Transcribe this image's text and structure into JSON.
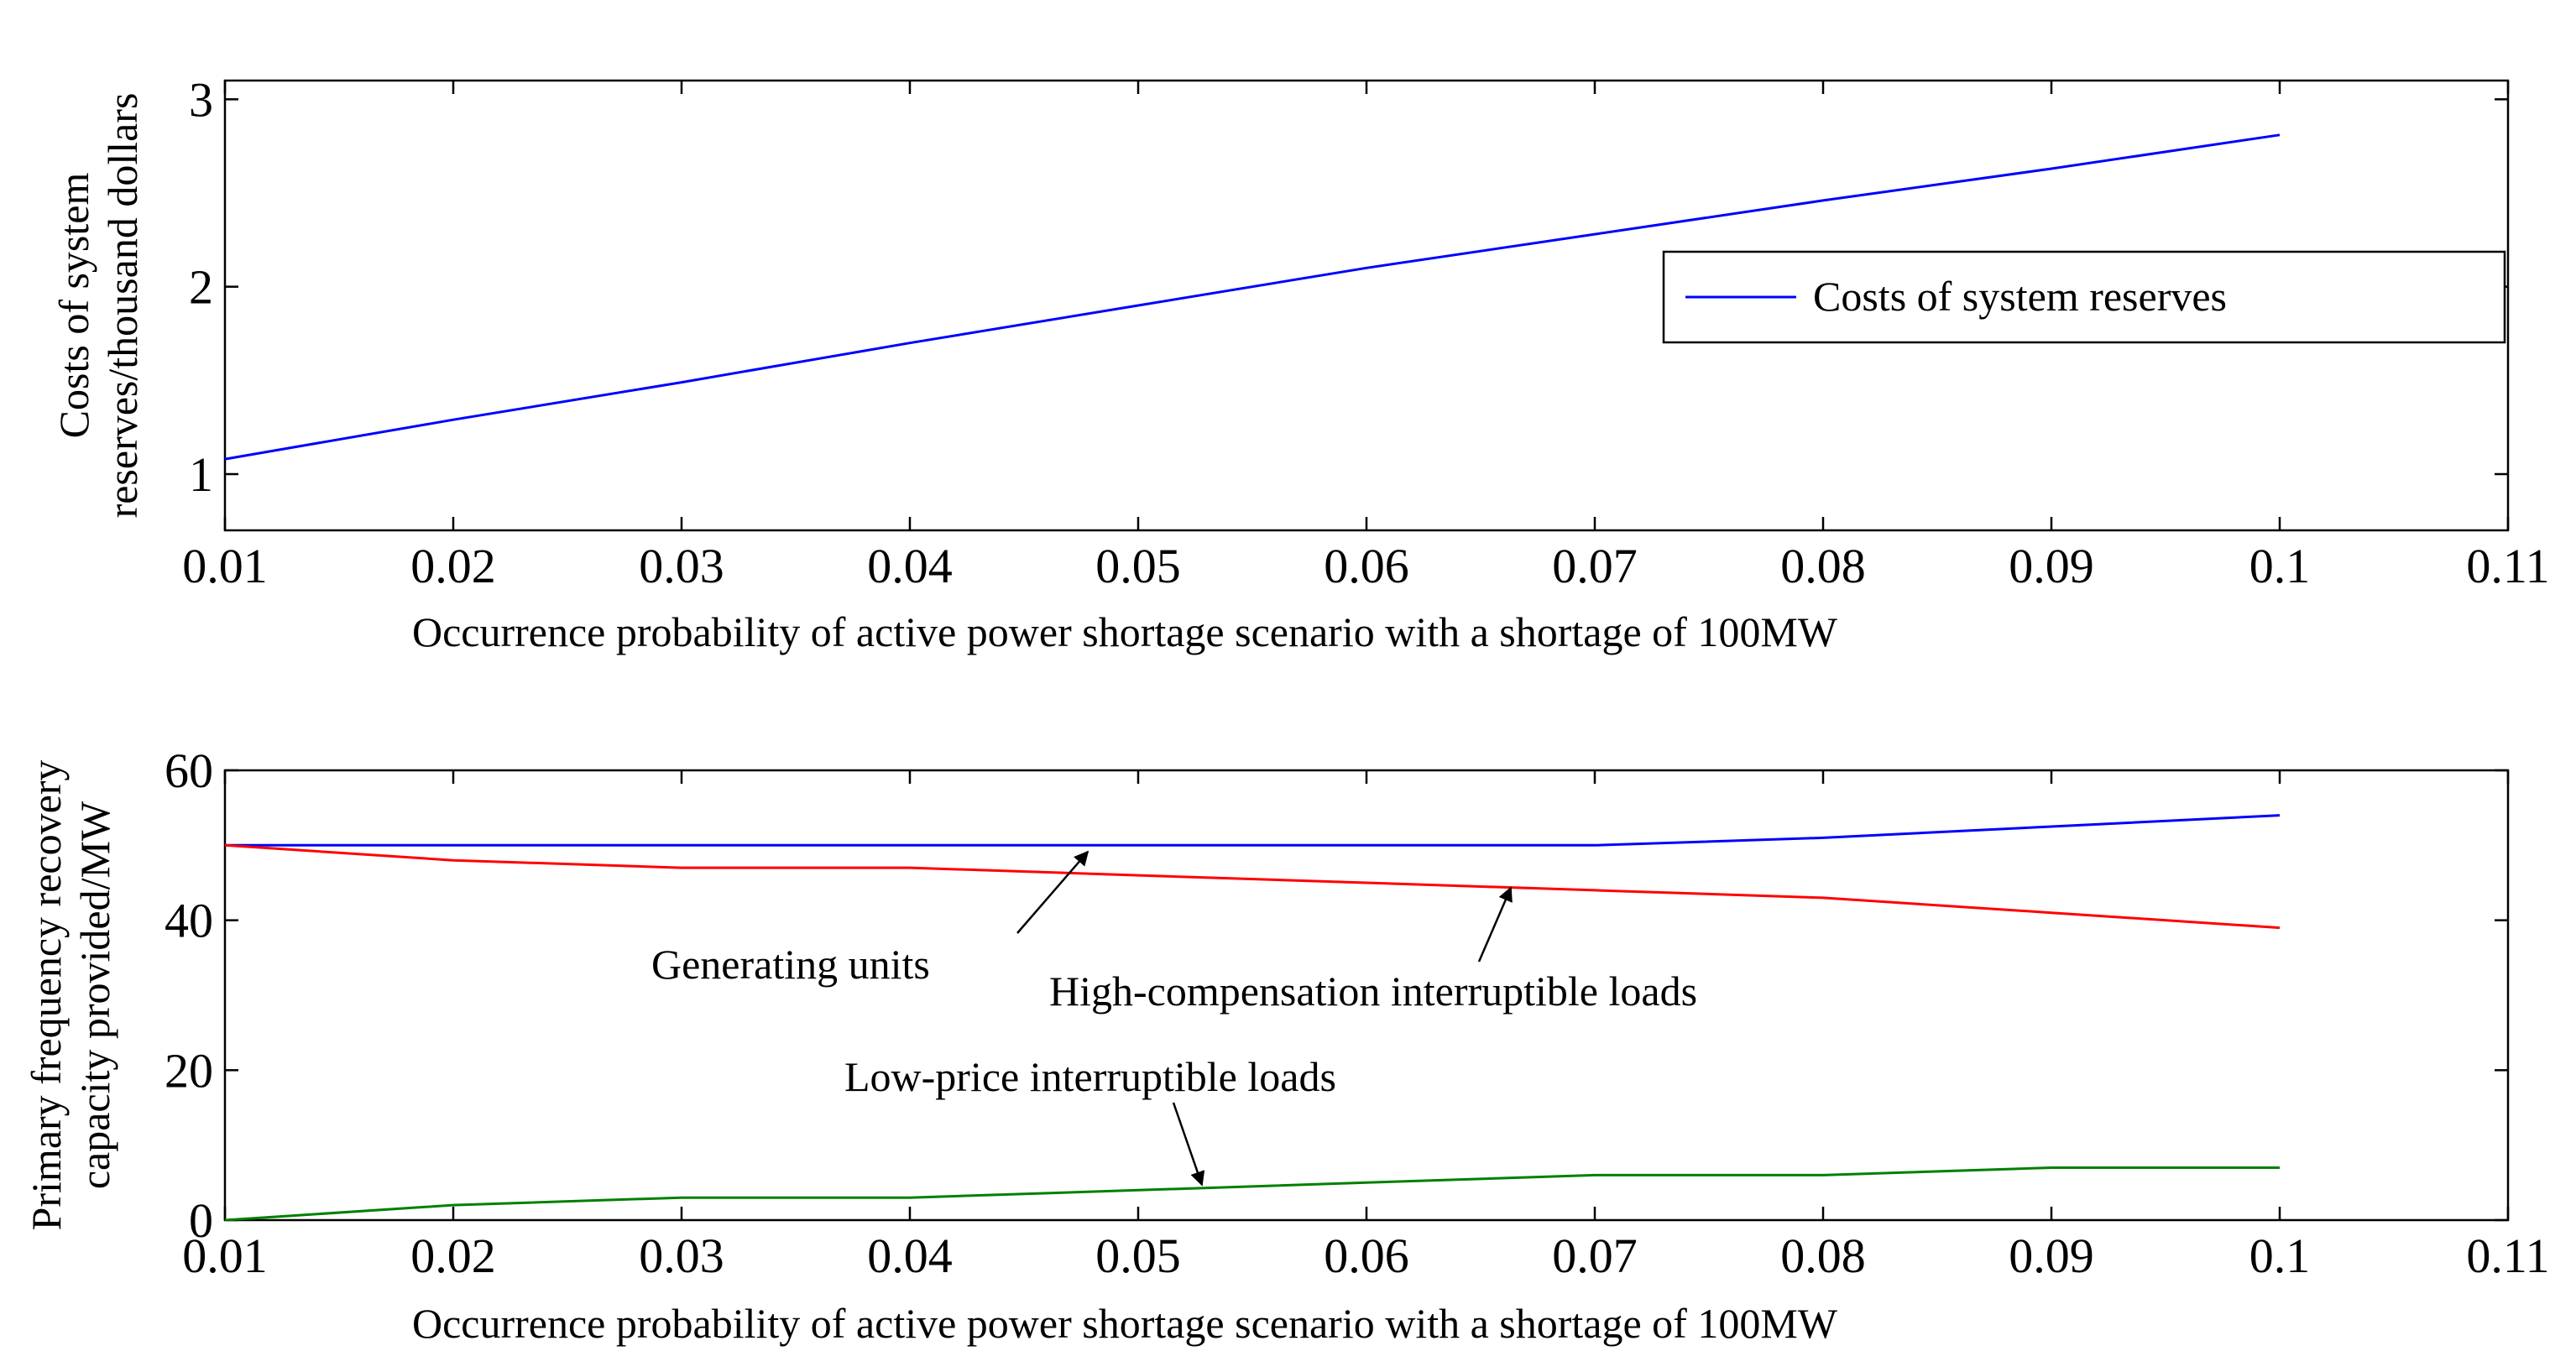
{
  "chart_data": [
    {
      "type": "line",
      "title": "",
      "xlabel": "Occurrence probability of active power shortage scenario with a shortage of 100MW",
      "ylabel_lines": [
        "Costs of system",
        "reserves/thousand dollars"
      ],
      "xlim": [
        0.01,
        0.11
      ],
      "ylim": [
        0.7,
        3.1
      ],
      "xticks": [
        "0.01",
        "0.02",
        "0.03",
        "0.04",
        "0.05",
        "0.06",
        "0.07",
        "0.08",
        "0.09",
        "0.1",
        "0.11"
      ],
      "yticks": [
        "1",
        "2",
        "3"
      ],
      "grid": false,
      "legend_position": "right",
      "series": [
        {
          "name": "Costs of system reserves",
          "color": "#0000ff",
          "x": [
            0.01,
            0.02,
            0.03,
            0.04,
            0.05,
            0.06,
            0.07,
            0.08,
            0.09,
            0.1
          ],
          "y": [
            1.08,
            1.29,
            1.49,
            1.7,
            1.9,
            2.1,
            2.28,
            2.46,
            2.63,
            2.81
          ]
        }
      ]
    },
    {
      "type": "line",
      "title": "",
      "xlabel": "Occurrence probability of active power shortage scenario with a shortage of 100MW",
      "ylabel_lines": [
        "Primary frequency recovery",
        "capacity provided/MW"
      ],
      "xlim": [
        0.01,
        0.11
      ],
      "ylim": [
        0,
        60
      ],
      "xticks": [
        "0.01",
        "0.02",
        "0.03",
        "0.04",
        "0.05",
        "0.06",
        "0.07",
        "0.08",
        "0.09",
        "0.1",
        "0.11"
      ],
      "yticks": [
        "0",
        "20",
        "40",
        "60"
      ],
      "grid": false,
      "series": [
        {
          "color": "#0000ff",
          "x": [
            0.01,
            0.02,
            0.03,
            0.04,
            0.05,
            0.06,
            0.07,
            0.08,
            0.09,
            0.1
          ],
          "y": [
            50,
            50,
            50,
            50,
            50,
            50,
            50,
            51,
            52.5,
            54
          ]
        },
        {
          "color": "#ff0000",
          "x": [
            0.01,
            0.02,
            0.03,
            0.04,
            0.05,
            0.06,
            0.07,
            0.08,
            0.09,
            0.1
          ],
          "y": [
            50,
            48,
            47,
            47,
            46,
            45,
            44,
            43,
            41,
            39
          ]
        },
        {
          "color": "#008000",
          "x": [
            0.01,
            0.02,
            0.03,
            0.04,
            0.05,
            0.06,
            0.07,
            0.08,
            0.09,
            0.1
          ],
          "y": [
            0,
            2,
            3,
            3,
            4,
            5,
            6,
            6,
            7,
            7
          ]
        }
      ],
      "annotations": [
        {
          "text": "Generating units",
          "points_to": [
            0.048,
            50
          ]
        },
        {
          "text": "High-compensation interruptible loads",
          "points_to": [
            0.066,
            44.5
          ]
        },
        {
          "text": "Low-price interruptible loads",
          "points_to": [
            0.053,
            4.5
          ]
        }
      ]
    }
  ]
}
